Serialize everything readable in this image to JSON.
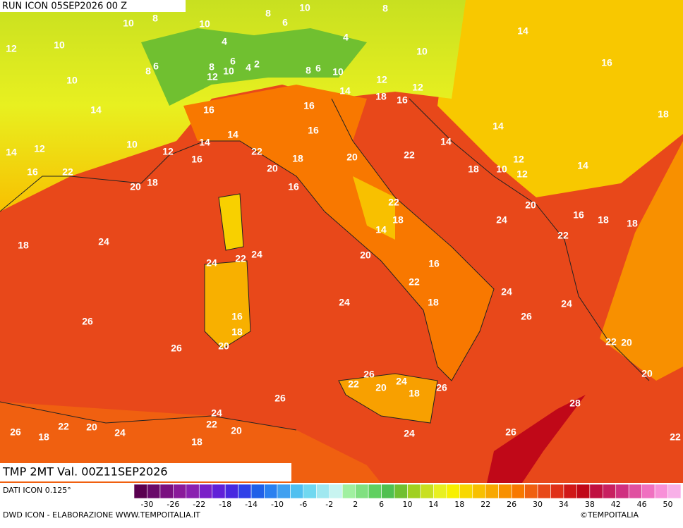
{
  "header": {
    "run": "RUN ICON 05SEP2026 00 Z",
    "valid": "TMP 2MT Val. 00Z11SEP2026"
  },
  "footer": {
    "source": "DATI ICON 0.125°",
    "credit": "DWD ICON - ELABORAZIONE WWW.TEMPOITALIA.IT",
    "copyright": "©TEMPOITALIA"
  },
  "map": {
    "labels": [
      10,
      8,
      8,
      8,
      6,
      10,
      10,
      12,
      10,
      4,
      4,
      10,
      14,
      6,
      8,
      8,
      6,
      10,
      4,
      2,
      8,
      6,
      10,
      16,
      12,
      10,
      12,
      12,
      14,
      18,
      16,
      14,
      16,
      16,
      18,
      14,
      16,
      14,
      14,
      10,
      14,
      12,
      14,
      12,
      22,
      22,
      20,
      16,
      18,
      20,
      12,
      14,
      18,
      10,
      12,
      16,
      22,
      20,
      18,
      16,
      22,
      20,
      16,
      18,
      24,
      18,
      18,
      14,
      22,
      18,
      24,
      24,
      22,
      24,
      20,
      16,
      22,
      18,
      24,
      24,
      24,
      26,
      16,
      26,
      18,
      20,
      26,
      22,
      20,
      26,
      24,
      22,
      20,
      18,
      26,
      20,
      26,
      28,
      24,
      22,
      20,
      26,
      24,
      22,
      18,
      20,
      24,
      26,
      22,
      18
    ]
  },
  "colorbar": {
    "ticks": [
      -30,
      -26,
      -22,
      -18,
      -14,
      -10,
      -6,
      -2,
      2,
      6,
      10,
      14,
      18,
      22,
      26,
      30,
      34,
      38,
      42,
      46,
      50
    ],
    "colors": [
      "#5a0050",
      "#6a0a6a",
      "#7a1080",
      "#8a1a9a",
      "#8a20b0",
      "#7a20c8",
      "#6020d8",
      "#4828e0",
      "#3040e8",
      "#2060e8",
      "#2a80f0",
      "#40a0f0",
      "#50c0f0",
      "#70d8f0",
      "#a0e8f0",
      "#c8f4f0",
      "#a0f0a0",
      "#80e080",
      "#60d060",
      "#50c050",
      "#70c030",
      "#a0d020",
      "#c8e020",
      "#e8f020",
      "#f8f000",
      "#f8d800",
      "#f8c000",
      "#f8a800",
      "#f89000",
      "#f87800",
      "#f06010",
      "#e84818",
      "#e03018",
      "#d01818",
      "#c00818",
      "#c01040",
      "#c82060",
      "#d03080",
      "#e050a0",
      "#f070c0",
      "#f890d8",
      "#f8b0e8"
    ]
  }
}
